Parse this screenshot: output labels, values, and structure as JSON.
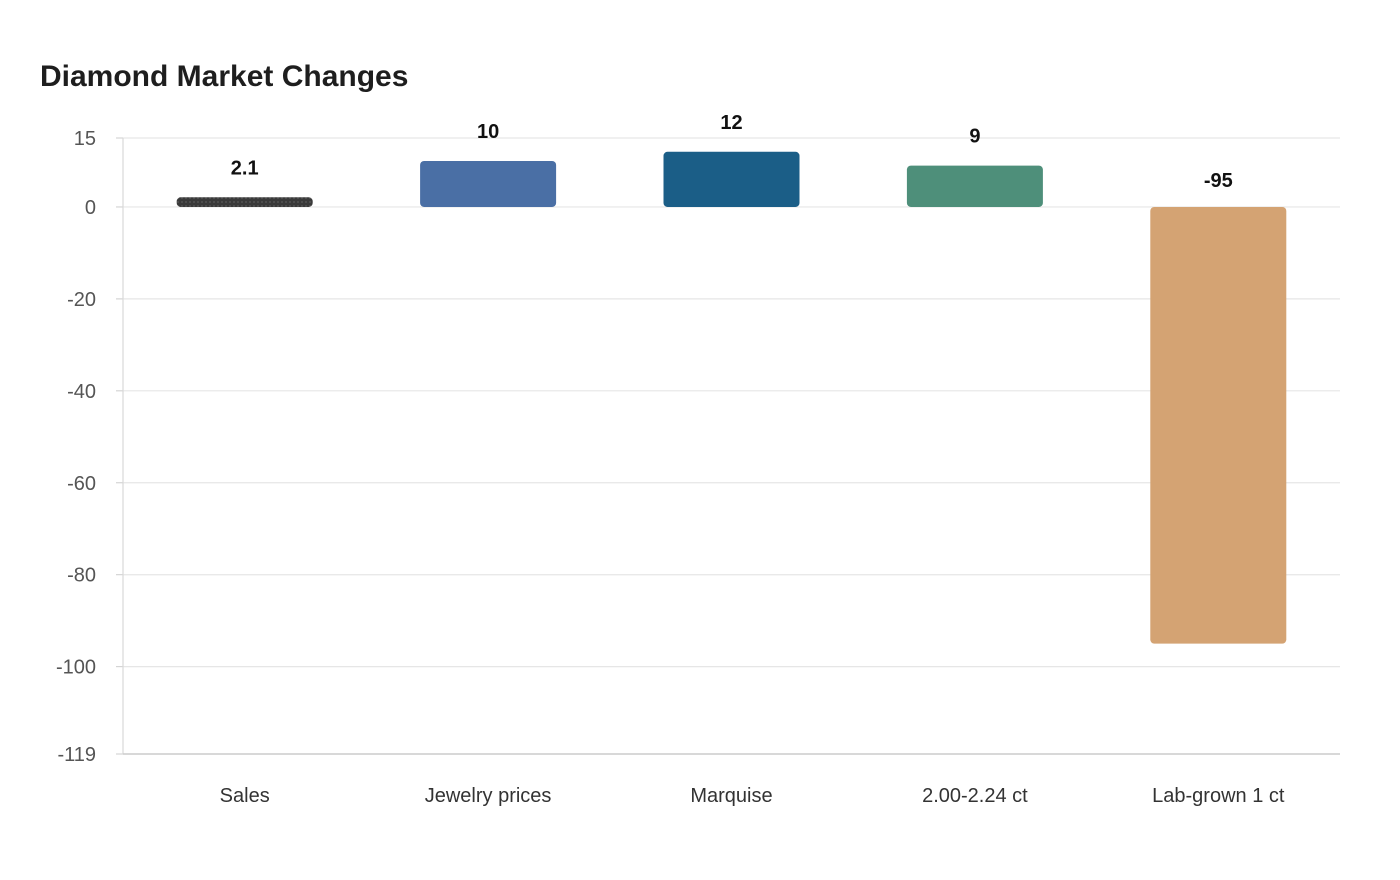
{
  "chart_data": {
    "type": "bar",
    "title": "Diamond Market Changes",
    "xlabel": "",
    "ylabel": "",
    "categories": [
      "Sales",
      "Jewelry prices",
      "Marquise",
      "2.00-2.24 ct",
      "Lab-grown 1 ct"
    ],
    "values": [
      2.1,
      10,
      12,
      9,
      -95
    ],
    "value_labels": [
      "2.1",
      "10",
      "12",
      "9",
      "-95"
    ],
    "colors": [
      "#3a3a3a",
      "#4a6fa5",
      "#1b5e87",
      "#4e8f7a",
      "#d4a373"
    ],
    "ylim": [
      -119,
      15
    ],
    "yticks": [
      15,
      0,
      -20,
      -40,
      -60,
      -80,
      -100,
      -119
    ],
    "grid": true,
    "legend": "none"
  }
}
